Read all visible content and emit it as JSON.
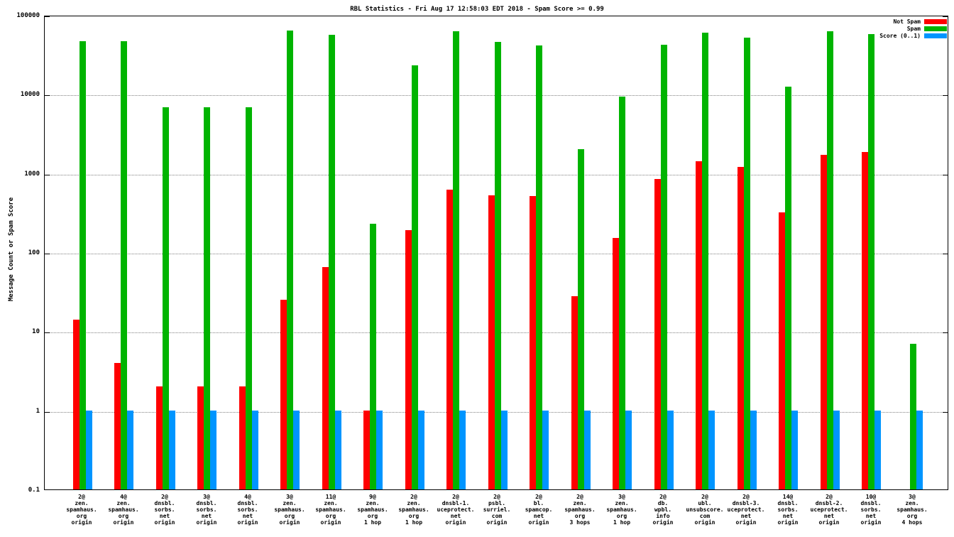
{
  "title": "RBL Statistics - Fri Aug 17 12:58:03 EDT 2018 - Spam Score >= 0.99",
  "chart_data": {
    "type": "bar",
    "title": "RBL Statistics - Fri Aug 17 12:58:03 EDT 2018 - Spam Score >= 0.99",
    "xlabel": "",
    "ylabel": "Message Count or Spam Score",
    "yscale": "log",
    "ylim": [
      0.1,
      100000
    ],
    "ytick_labels": [
      "0.1",
      "1",
      "10",
      "100",
      "1000",
      "10000",
      "100000"
    ],
    "grid": true,
    "legend_position": "top-right",
    "categories": [
      [
        "2@",
        "zen.",
        "spamhaus.",
        "org",
        "origin"
      ],
      [
        "4@",
        "zen.",
        "spamhaus.",
        "org",
        "origin"
      ],
      [
        "2@",
        "dnsbl.",
        "sorbs.",
        "net",
        "origin"
      ],
      [
        "3@",
        "dnsbl.",
        "sorbs.",
        "net",
        "origin"
      ],
      [
        "4@",
        "dnsbl.",
        "sorbs.",
        "net",
        "origin"
      ],
      [
        "3@",
        "zen.",
        "spamhaus.",
        "org",
        "origin"
      ],
      [
        "11@",
        "zen.",
        "spamhaus.",
        "org",
        "origin"
      ],
      [
        "9@",
        "zen.",
        "spamhaus.",
        "org",
        "1 hop"
      ],
      [
        "2@",
        "zen.",
        "spamhaus.",
        "org",
        "1 hop"
      ],
      [
        "2@",
        "dnsbl-1.",
        "uceprotect.",
        "net",
        "origin"
      ],
      [
        "2@",
        "psbl.",
        "surriel.",
        "com",
        "origin"
      ],
      [
        "2@",
        "bl.",
        "spamcop.",
        "net",
        "origin"
      ],
      [
        "2@",
        "zen.",
        "spamhaus.",
        "org",
        "3 hops"
      ],
      [
        "3@",
        "zen.",
        "spamhaus.",
        "org",
        "1 hop"
      ],
      [
        "2@",
        "db.",
        "wpbl.",
        "info",
        "origin"
      ],
      [
        "2@",
        "ubl.",
        "unsubscore.",
        "com",
        "origin"
      ],
      [
        "2@",
        "dnsbl-3.",
        "uceprotect.",
        "net",
        "origin"
      ],
      [
        "14@",
        "dnsbl.",
        "sorbs.",
        "net",
        "origin"
      ],
      [
        "2@",
        "dnsbl-2.",
        "uceprotect.",
        "net",
        "origin"
      ],
      [
        "10@",
        "dnsbl.",
        "sorbs.",
        "net",
        "origin"
      ],
      [
        "3@",
        "zen.",
        "spamhaus.",
        "org",
        "4 hops"
      ]
    ],
    "series": [
      {
        "name": "Not Spam",
        "color": "#ff0000",
        "values": [
          14,
          4,
          2,
          2,
          2,
          25,
          65,
          1,
          190,
          620,
          520,
          510,
          28,
          150,
          850,
          1400,
          1200,
          320,
          1700,
          1850,
          0
        ]
      },
      {
        "name": "Spam",
        "color": "#00b400",
        "values": [
          47000,
          47000,
          6800,
          6800,
          6800,
          63000,
          56000,
          230,
          23000,
          62000,
          46000,
          41000,
          2000,
          9200,
          42000,
          60000,
          52000,
          12500,
          62000,
          57000,
          7
        ]
      },
      {
        "name": "Score (0..1)",
        "color": "#0095ff",
        "values": [
          1,
          1,
          1,
          1,
          1,
          1,
          1,
          1,
          1,
          1,
          1,
          1,
          1,
          1,
          1,
          1,
          1,
          1,
          1,
          1,
          1
        ]
      }
    ]
  }
}
